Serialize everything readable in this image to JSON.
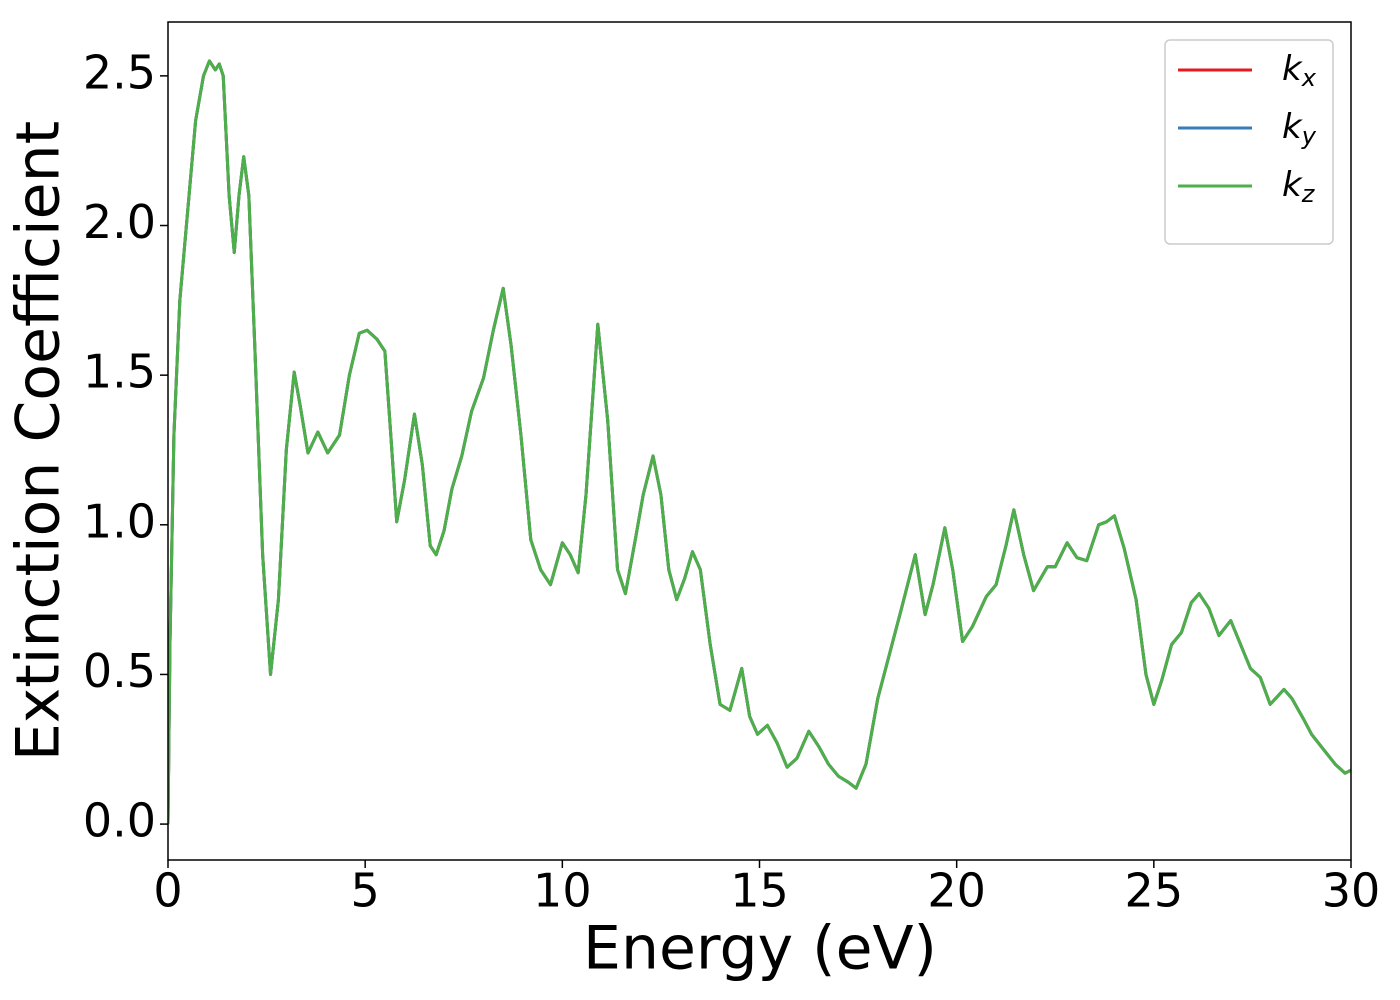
{
  "chart_data": {
    "type": "line",
    "xlabel": "Energy (eV)",
    "ylabel": "Extinction Coefficient",
    "xlim": [
      0,
      30
    ],
    "ylim": [
      -0.12,
      2.68
    ],
    "xticks": [
      0,
      5,
      10,
      15,
      20,
      25,
      30
    ],
    "yticks": [
      {
        "value": 0,
        "label": "0.0"
      },
      0.5,
      {
        "value": 1,
        "label": "1.0"
      },
      1.5,
      {
        "value": 2,
        "label": "2.0"
      },
      2.5
    ],
    "legend": "upper right",
    "x": [
      0,
      0.05,
      0.15,
      0.3,
      0.5,
      0.7,
      0.9,
      1.05,
      1.2,
      1.3,
      1.4,
      1.55,
      1.68,
      1.8,
      1.92,
      2.05,
      2.2,
      2.4,
      2.6,
      2.8,
      3.0,
      3.2,
      3.35,
      3.55,
      3.8,
      4.05,
      4.35,
      4.6,
      4.85,
      5.05,
      5.3,
      5.5,
      5.65,
      5.8,
      6.0,
      6.25,
      6.45,
      6.65,
      6.8,
      7.0,
      7.2,
      7.45,
      7.7,
      8.0,
      8.25,
      8.5,
      8.7,
      8.95,
      9.2,
      9.45,
      9.7,
      10.0,
      10.2,
      10.4,
      10.6,
      10.9,
      11.15,
      11.4,
      11.6,
      11.85,
      12.05,
      12.3,
      12.5,
      12.7,
      12.9,
      13.1,
      13.3,
      13.5,
      13.75,
      14.0,
      14.25,
      14.55,
      14.75,
      14.95,
      15.2,
      15.45,
      15.7,
      15.95,
      16.25,
      16.5,
      16.75,
      17.0,
      17.25,
      17.45,
      17.7,
      18.0,
      18.3,
      18.6,
      18.95,
      19.2,
      19.4,
      19.7,
      19.9,
      20.15,
      20.4,
      20.75,
      21.0,
      21.25,
      21.45,
      21.7,
      21.95,
      22.3,
      22.5,
      22.8,
      23.05,
      23.3,
      23.6,
      23.8,
      24.0,
      24.25,
      24.55,
      24.8,
      25.0,
      25.2,
      25.45,
      25.7,
      25.95,
      26.15,
      26.4,
      26.65,
      26.95,
      27.2,
      27.45,
      27.7,
      27.95,
      28.3,
      28.5,
      28.8,
      29.0,
      29.3,
      29.6,
      29.85,
      30.0
    ],
    "series": [
      {
        "name": "kx",
        "color": "#e41a1c",
        "values": [
          0,
          0.6,
          1.3,
          1.75,
          2.05,
          2.35,
          2.5,
          2.55,
          2.52,
          2.54,
          2.5,
          2.1,
          1.91,
          2.1,
          2.23,
          2.1,
          1.6,
          0.9,
          0.5,
          0.75,
          1.25,
          1.51,
          1.4,
          1.24,
          1.31,
          1.24,
          1.3,
          1.5,
          1.64,
          1.65,
          1.62,
          1.58,
          1.3,
          1.01,
          1.15,
          1.37,
          1.2,
          0.93,
          0.9,
          0.98,
          1.12,
          1.23,
          1.38,
          1.49,
          1.65,
          1.79,
          1.6,
          1.3,
          0.95,
          0.85,
          0.8,
          0.94,
          0.9,
          0.84,
          1.1,
          1.67,
          1.35,
          0.85,
          0.77,
          0.95,
          1.1,
          1.23,
          1.1,
          0.85,
          0.75,
          0.82,
          0.91,
          0.85,
          0.6,
          0.4,
          0.38,
          0.52,
          0.36,
          0.3,
          0.33,
          0.27,
          0.19,
          0.22,
          0.31,
          0.26,
          0.2,
          0.16,
          0.14,
          0.12,
          0.2,
          0.42,
          0.57,
          0.72,
          0.9,
          0.7,
          0.8,
          0.99,
          0.85,
          0.61,
          0.66,
          0.76,
          0.8,
          0.93,
          1.05,
          0.9,
          0.78,
          0.86,
          0.86,
          0.94,
          0.89,
          0.88,
          1.0,
          1.01,
          1.03,
          0.92,
          0.75,
          0.5,
          0.4,
          0.48,
          0.6,
          0.64,
          0.74,
          0.77,
          0.72,
          0.63,
          0.68,
          0.6,
          0.52,
          0.49,
          0.4,
          0.45,
          0.42,
          0.35,
          0.3,
          0.25,
          0.2,
          0.17,
          0.18
        ]
      },
      {
        "name": "ky",
        "color": "#377eb8",
        "values": [
          0,
          0.6,
          1.3,
          1.75,
          2.05,
          2.35,
          2.5,
          2.55,
          2.52,
          2.54,
          2.5,
          2.1,
          1.91,
          2.1,
          2.23,
          2.1,
          1.6,
          0.9,
          0.5,
          0.75,
          1.25,
          1.51,
          1.4,
          1.24,
          1.31,
          1.24,
          1.3,
          1.5,
          1.64,
          1.65,
          1.62,
          1.58,
          1.3,
          1.01,
          1.15,
          1.37,
          1.2,
          0.93,
          0.9,
          0.98,
          1.12,
          1.23,
          1.38,
          1.49,
          1.65,
          1.79,
          1.6,
          1.3,
          0.95,
          0.85,
          0.8,
          0.94,
          0.9,
          0.84,
          1.1,
          1.67,
          1.35,
          0.85,
          0.77,
          0.95,
          1.1,
          1.23,
          1.1,
          0.85,
          0.75,
          0.82,
          0.91,
          0.85,
          0.6,
          0.4,
          0.38,
          0.52,
          0.36,
          0.3,
          0.33,
          0.27,
          0.19,
          0.22,
          0.31,
          0.26,
          0.2,
          0.16,
          0.14,
          0.12,
          0.2,
          0.42,
          0.57,
          0.72,
          0.9,
          0.7,
          0.8,
          0.99,
          0.85,
          0.61,
          0.66,
          0.76,
          0.8,
          0.93,
          1.05,
          0.9,
          0.78,
          0.86,
          0.86,
          0.94,
          0.89,
          0.88,
          1.0,
          1.01,
          1.03,
          0.92,
          0.75,
          0.5,
          0.4,
          0.48,
          0.6,
          0.64,
          0.74,
          0.77,
          0.72,
          0.63,
          0.68,
          0.6,
          0.52,
          0.49,
          0.4,
          0.45,
          0.42,
          0.35,
          0.3,
          0.25,
          0.2,
          0.17,
          0.18
        ]
      },
      {
        "name": "kz",
        "color": "#4daf4a",
        "values": [
          0,
          0.6,
          1.3,
          1.75,
          2.05,
          2.35,
          2.5,
          2.55,
          2.52,
          2.54,
          2.5,
          2.1,
          1.91,
          2.1,
          2.23,
          2.1,
          1.6,
          0.9,
          0.5,
          0.75,
          1.25,
          1.51,
          1.4,
          1.24,
          1.31,
          1.24,
          1.3,
          1.5,
          1.64,
          1.65,
          1.62,
          1.58,
          1.3,
          1.01,
          1.15,
          1.37,
          1.2,
          0.93,
          0.9,
          0.98,
          1.12,
          1.23,
          1.38,
          1.49,
          1.65,
          1.79,
          1.6,
          1.3,
          0.95,
          0.85,
          0.8,
          0.94,
          0.9,
          0.84,
          1.1,
          1.67,
          1.35,
          0.85,
          0.77,
          0.95,
          1.1,
          1.23,
          1.1,
          0.85,
          0.75,
          0.82,
          0.91,
          0.85,
          0.6,
          0.4,
          0.38,
          0.52,
          0.36,
          0.3,
          0.33,
          0.27,
          0.19,
          0.22,
          0.31,
          0.26,
          0.2,
          0.16,
          0.14,
          0.12,
          0.2,
          0.42,
          0.57,
          0.72,
          0.9,
          0.7,
          0.8,
          0.99,
          0.85,
          0.61,
          0.66,
          0.76,
          0.8,
          0.93,
          1.05,
          0.9,
          0.78,
          0.86,
          0.86,
          0.94,
          0.89,
          0.88,
          1.0,
          1.01,
          1.03,
          0.92,
          0.75,
          0.5,
          0.4,
          0.48,
          0.6,
          0.64,
          0.74,
          0.77,
          0.72,
          0.63,
          0.68,
          0.6,
          0.52,
          0.49,
          0.4,
          0.45,
          0.42,
          0.35,
          0.3,
          0.25,
          0.2,
          0.17,
          0.18
        ]
      }
    ]
  }
}
